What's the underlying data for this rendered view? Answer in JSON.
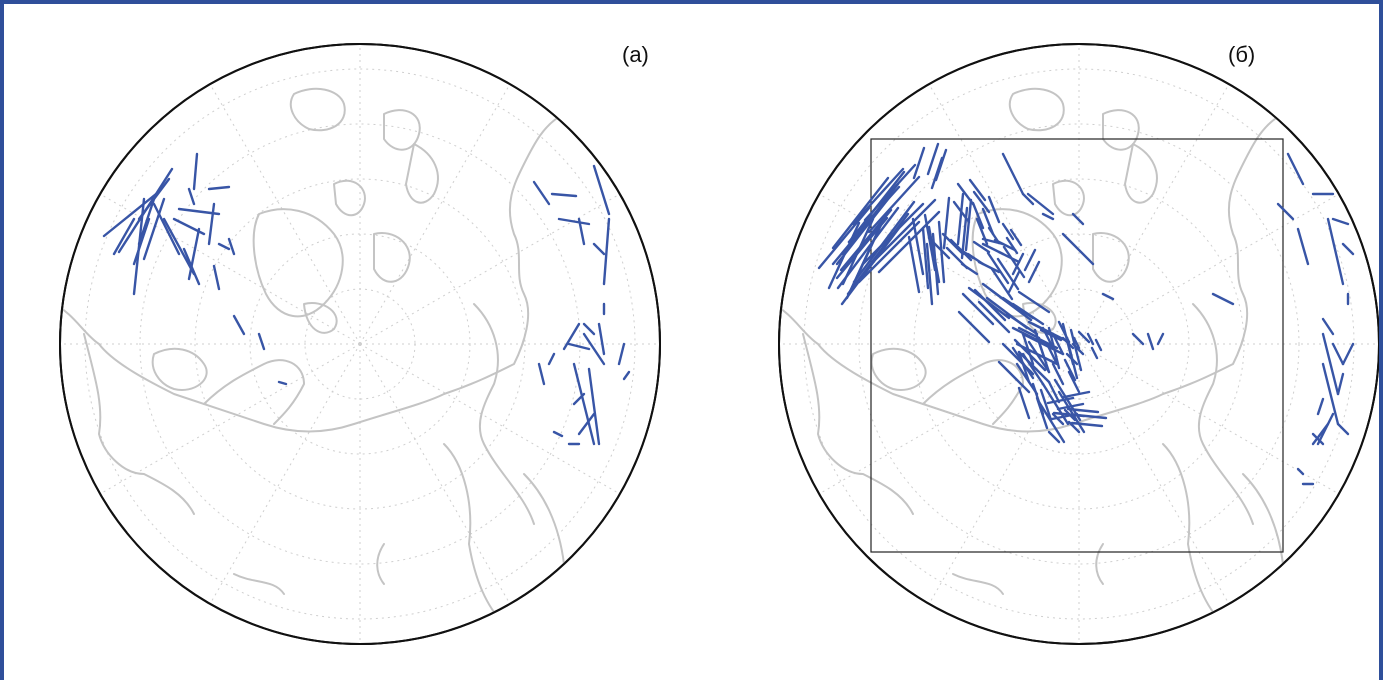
{
  "panels": [
    {
      "label": "(а)",
      "track_color": "#3855a6",
      "tracks": [
        [
          193,
          150,
          190,
          185
        ],
        [
          168,
          165,
          115,
          248
        ],
        [
          165,
          175,
          135,
          215
        ],
        [
          152,
          190,
          100,
          232
        ],
        [
          150,
          195,
          135,
          240
        ],
        [
          160,
          195,
          140,
          255
        ],
        [
          140,
          195,
          130,
          290
        ],
        [
          150,
          200,
          175,
          250
        ],
        [
          145,
          215,
          130,
          260
        ],
        [
          160,
          215,
          190,
          270
        ],
        [
          170,
          215,
          200,
          230
        ],
        [
          175,
          205,
          215,
          210
        ],
        [
          205,
          185,
          225,
          183
        ],
        [
          210,
          200,
          205,
          240
        ],
        [
          195,
          225,
          185,
          275
        ],
        [
          225,
          235,
          230,
          250
        ],
        [
          210,
          262,
          215,
          285
        ],
        [
          230,
          312,
          240,
          330
        ],
        [
          255,
          330,
          260,
          345
        ],
        [
          275,
          378,
          282,
          380
        ],
        [
          130,
          215,
          110,
          250
        ],
        [
          185,
          185,
          190,
          200
        ],
        [
          180,
          245,
          195,
          280
        ],
        [
          215,
          240,
          225,
          245
        ],
        [
          530,
          178,
          545,
          200
        ],
        [
          548,
          190,
          572,
          192
        ],
        [
          555,
          215,
          585,
          220
        ],
        [
          575,
          215,
          580,
          240
        ],
        [
          590,
          162,
          605,
          210
        ],
        [
          605,
          215,
          600,
          280
        ],
        [
          590,
          240,
          600,
          250
        ],
        [
          600,
          300,
          600,
          310
        ],
        [
          580,
          320,
          590,
          330
        ],
        [
          565,
          340,
          585,
          345
        ],
        [
          580,
          330,
          600,
          360
        ],
        [
          595,
          320,
          600,
          350
        ],
        [
          570,
          360,
          590,
          440
        ],
        [
          585,
          365,
          595,
          440
        ],
        [
          590,
          410,
          575,
          430
        ],
        [
          580,
          390,
          570,
          400
        ],
        [
          620,
          340,
          615,
          360
        ],
        [
          625,
          368,
          620,
          375
        ],
        [
          550,
          350,
          545,
          360
        ],
        [
          535,
          360,
          540,
          380
        ],
        [
          575,
          320,
          560,
          345
        ],
        [
          550,
          428,
          558,
          432
        ],
        [
          565,
          440,
          575,
          440
        ]
      ]
    },
    {
      "label": "(б)",
      "track_color": "#3855a6",
      "tracks": [
        [
          215,
          140,
          205,
          170
        ],
        [
          180,
          165,
          130,
          220
        ],
        [
          175,
          180,
          120,
          250
        ],
        [
          160,
          200,
          110,
          260
        ],
        [
          200,
          200,
          140,
          260
        ],
        [
          185,
          210,
          125,
          290
        ],
        [
          150,
          215,
          120,
          280
        ],
        [
          190,
          215,
          200,
          270
        ],
        [
          210,
          230,
          215,
          290
        ],
        [
          220,
          230,
          240,
          250
        ],
        [
          235,
          180,
          250,
          200
        ],
        [
          260,
          205,
          270,
          230
        ],
        [
          240,
          190,
          235,
          240
        ],
        [
          260,
          240,
          280,
          250
        ],
        [
          245,
          250,
          260,
          260
        ],
        [
          280,
          220,
          290,
          235
        ],
        [
          300,
          250,
          290,
          270
        ],
        [
          275,
          255,
          295,
          285
        ],
        [
          260,
          280,
          300,
          310
        ],
        [
          240,
          290,
          270,
          320
        ],
        [
          290,
          300,
          320,
          320
        ],
        [
          310,
          320,
          330,
          330
        ],
        [
          300,
          330,
          310,
          360
        ],
        [
          330,
          330,
          340,
          350
        ],
        [
          340,
          320,
          350,
          360
        ],
        [
          330,
          360,
          340,
          380
        ],
        [
          350,
          340,
          360,
          350
        ],
        [
          365,
          330,
          370,
          340
        ],
        [
          280,
          340,
          310,
          370
        ],
        [
          300,
          350,
          320,
          380
        ],
        [
          310,
          380,
          320,
          410
        ],
        [
          320,
          380,
          345,
          420
        ],
        [
          335,
          405,
          360,
          400
        ],
        [
          345,
          405,
          375,
          408
        ],
        [
          330,
          410,
          340,
          420
        ],
        [
          300,
          330,
          340,
          350
        ],
        [
          280,
          150,
          300,
          190
        ],
        [
          300,
          190,
          310,
          200
        ],
        [
          305,
          190,
          330,
          210
        ],
        [
          260,
          235,
          280,
          240
        ],
        [
          340,
          230,
          370,
          260
        ],
        [
          320,
          210,
          330,
          215
        ],
        [
          350,
          210,
          360,
          220
        ],
        [
          380,
          290,
          390,
          295
        ],
        [
          410,
          330,
          420,
          340
        ],
        [
          425,
          330,
          430,
          345
        ],
        [
          440,
          330,
          435,
          340
        ],
        [
          490,
          290,
          510,
          300
        ],
        [
          565,
          150,
          580,
          180
        ],
        [
          555,
          200,
          570,
          215
        ],
        [
          575,
          225,
          585,
          260
        ],
        [
          590,
          190,
          610,
          190
        ],
        [
          610,
          215,
          625,
          220
        ],
        [
          605,
          215,
          620,
          280
        ],
        [
          620,
          240,
          630,
          250
        ],
        [
          625,
          290,
          625,
          300
        ],
        [
          600,
          315,
          610,
          330
        ],
        [
          600,
          330,
          615,
          390
        ],
        [
          610,
          340,
          620,
          360
        ],
        [
          600,
          360,
          615,
          420
        ],
        [
          600,
          395,
          595,
          410
        ],
        [
          630,
          340,
          620,
          360
        ],
        [
          620,
          370,
          615,
          390
        ],
        [
          605,
          420,
          590,
          440
        ],
        [
          590,
          430,
          600,
          440
        ],
        [
          575,
          465,
          580,
          470
        ],
        [
          580,
          480,
          590,
          480
        ],
        [
          610,
          410,
          595,
          440
        ],
        [
          615,
          420,
          625,
          430
        ]
      ],
      "dense_offsets": [
        [
          0,
          0
        ],
        [
          8,
          6
        ],
        [
          -6,
          10
        ],
        [
          12,
          -4
        ],
        [
          4,
          14
        ],
        [
          -10,
          -6
        ],
        [
          16,
          8
        ],
        [
          -14,
          4
        ],
        [
          6,
          -12
        ],
        [
          -4,
          18
        ]
      ]
    }
  ]
}
